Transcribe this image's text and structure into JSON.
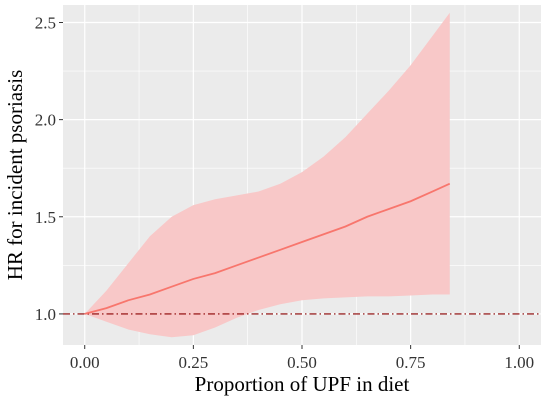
{
  "chart_data": {
    "type": "line",
    "title": "",
    "xlabel": "Proportion of UPF in diet",
    "ylabel": "HR for incident psoriasis",
    "xlim": [
      -0.05,
      1.05
    ],
    "ylim": [
      0.84,
      2.59
    ],
    "x_ticks": [
      0.0,
      0.25,
      0.5,
      0.75,
      1.0
    ],
    "x_tick_labels": [
      "0.00",
      "0.25",
      "0.50",
      "0.75",
      "1.00"
    ],
    "y_ticks": [
      1.0,
      1.5,
      2.0,
      2.5
    ],
    "y_tick_labels": [
      "1.0",
      "1.5",
      "2.0",
      "2.5"
    ],
    "grid": true,
    "background": "#ebebeb",
    "reference_line": {
      "y": 1.0,
      "style": "dot-dash",
      "color": "#8b0000"
    },
    "series": [
      {
        "color": "#f8766d",
        "band_color": "#f8c8c8",
        "x": [
          0.0,
          0.05,
          0.1,
          0.15,
          0.2,
          0.25,
          0.3,
          0.35,
          0.4,
          0.45,
          0.5,
          0.55,
          0.6,
          0.65,
          0.7,
          0.75,
          0.8,
          0.84
        ],
        "y": [
          1.0,
          1.03,
          1.07,
          1.1,
          1.14,
          1.18,
          1.21,
          1.25,
          1.29,
          1.33,
          1.37,
          1.41,
          1.45,
          1.5,
          1.54,
          1.58,
          1.63,
          1.67
        ],
        "lower": [
          1.0,
          0.96,
          0.92,
          0.895,
          0.88,
          0.89,
          0.93,
          0.98,
          1.02,
          1.05,
          1.07,
          1.08,
          1.085,
          1.09,
          1.09,
          1.095,
          1.1,
          1.1
        ],
        "upper": [
          1.0,
          1.12,
          1.26,
          1.4,
          1.5,
          1.56,
          1.59,
          1.61,
          1.63,
          1.67,
          1.73,
          1.81,
          1.91,
          2.03,
          2.15,
          2.28,
          2.43,
          2.55
        ]
      }
    ]
  }
}
